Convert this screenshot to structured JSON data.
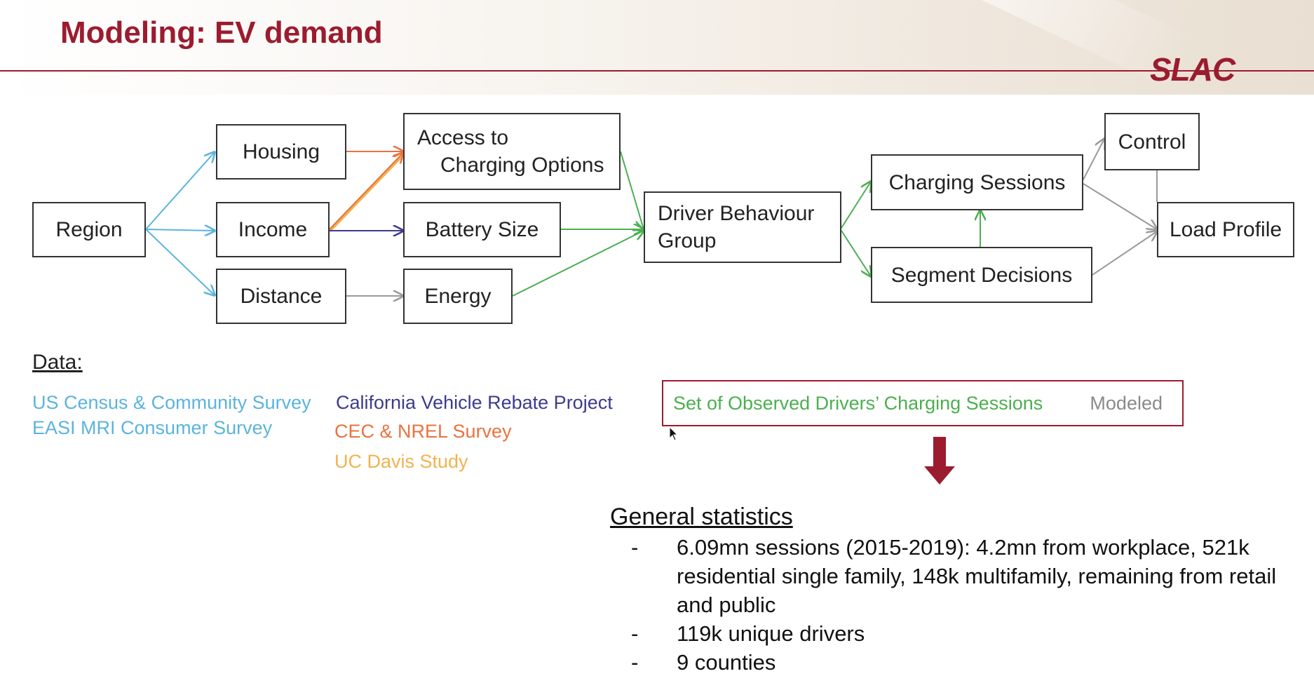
{
  "slide": {
    "title": "Modeling: EV demand",
    "logo": "SLAC"
  },
  "diagram": {
    "nodes": {
      "region": "Region",
      "housing": "Housing",
      "income": "Income",
      "distance": "Distance",
      "access_line1": "Access to",
      "access_line2": "Charging Options",
      "battery": "Battery Size",
      "energy": "Energy",
      "driver_line1": "Driver Behaviour",
      "driver_line2": "Group",
      "charging_sessions": "Charging Sessions",
      "segment_decisions": "Segment Decisions",
      "control": "Control",
      "load_profile": "Load Profile"
    },
    "edge_colors": {
      "census": "#5bb4dd",
      "cec_nrel": "#e8733f",
      "uc_davis": "#f2b24f",
      "rebate": "#3d3b8e",
      "observed": "#4caf50",
      "modeled": "#9a9a9a"
    }
  },
  "data_sources": {
    "heading": "Data:",
    "items": [
      {
        "label": "US Census & Community Survey",
        "color": "#5bb4dd"
      },
      {
        "label": "EASI MRI Consumer  Survey",
        "color": "#5bb4dd"
      },
      {
        "label": "California Vehicle Rebate Project",
        "color": "#3d3b8e"
      },
      {
        "label": "CEC & NREL Survey",
        "color": "#e8733f"
      },
      {
        "label": "UC Davis Study",
        "color": "#f2b24f"
      }
    ]
  },
  "legend": {
    "observed": "Set of Observed Drivers’ Charging Sessions",
    "modeled": "Modeled"
  },
  "stats": {
    "heading": "General statistics",
    "items": [
      "6.09mn sessions (2015-2019): 4.2mn from workplace, 521k residential single family, 148k multifamily, remaining from retail and public",
      "119k unique drivers",
      "9 counties"
    ],
    "bullet": "-"
  }
}
